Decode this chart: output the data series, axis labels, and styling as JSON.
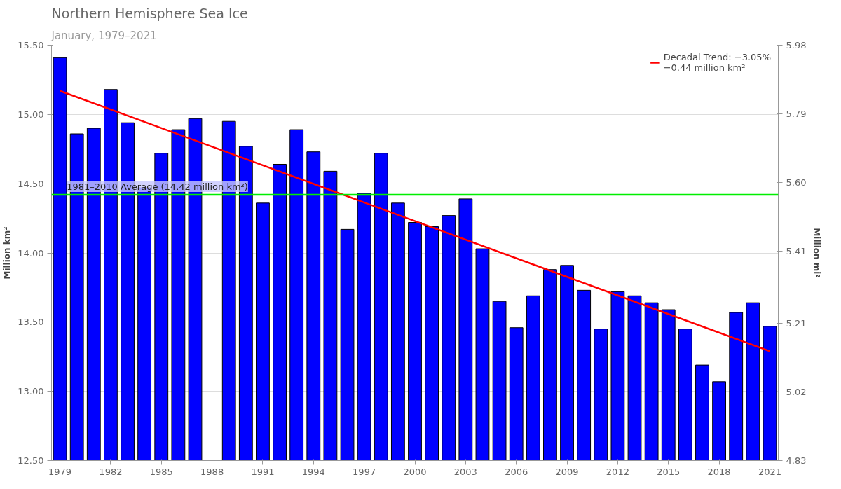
{
  "chart_data": {
    "type": "bar",
    "title": "Northern Hemisphere Sea Ice",
    "subtitle": "January, 1979–2021",
    "ylabel": "Million km²",
    "y2label": "Million mi²",
    "x": [
      1979,
      1980,
      1981,
      1982,
      1983,
      1984,
      1985,
      1986,
      1987,
      1988,
      1989,
      1990,
      1991,
      1992,
      1993,
      1994,
      1995,
      1996,
      1997,
      1998,
      1999,
      2000,
      2001,
      2002,
      2003,
      2004,
      2005,
      2006,
      2007,
      2008,
      2009,
      2010,
      2011,
      2012,
      2013,
      2014,
      2015,
      2016,
      2017,
      2018,
      2019,
      2020,
      2021
    ],
    "series": [
      {
        "color": "#0000ff",
        "values": [
          15.41,
          14.86,
          14.9,
          15.18,
          14.94,
          14.47,
          14.72,
          14.89,
          14.97,
          null,
          14.95,
          14.77,
          14.36,
          14.64,
          14.89,
          14.73,
          14.59,
          14.17,
          14.43,
          14.72,
          14.36,
          14.22,
          14.19,
          14.27,
          14.39,
          14.03,
          13.65,
          13.46,
          13.69,
          13.88,
          13.91,
          13.73,
          13.45,
          13.72,
          13.69,
          13.64,
          13.59,
          13.45,
          13.19,
          13.07,
          13.57,
          13.64,
          13.47
        ]
      },
      {
        "type": "line",
        "name": "Decadal Trend: −3.05%\n−0.44 million km²",
        "color": "#ff0000",
        "x": [
          1979,
          2021
        ],
        "values": [
          15.17,
          13.29
        ]
      }
    ],
    "xlim": [
      1978.5,
      2021.5
    ],
    "xticks": [
      1979,
      1982,
      1985,
      1988,
      1991,
      1994,
      1997,
      2000,
      2003,
      2006,
      2009,
      2012,
      2015,
      2018,
      2021
    ],
    "ylim": [
      12.5,
      15.5
    ],
    "yticks": [
      {
        "value": 12.5,
        "label": "12.50"
      },
      {
        "value": 13,
        "label": "13.00"
      },
      {
        "value": 13.5,
        "label": "13.50"
      },
      {
        "value": 14,
        "label": "14.00"
      },
      {
        "value": 14.5,
        "label": "14.50"
      },
      {
        "value": 15,
        "label": "15.00"
      },
      {
        "value": 15.5,
        "label": "15.50"
      }
    ],
    "y2lim": [
      4.83,
      5.98
    ],
    "y2ticks": [
      4.83,
      5.02,
      5.21,
      5.41,
      {
        "value": 5.6,
        "label": "5.60"
      },
      5.79,
      5.98
    ],
    "ref_lines": [
      {
        "axis": "y",
        "value": 14.42,
        "label": "1981–2010 Average (14.42 million km²)",
        "color": "#00ee00"
      }
    ],
    "grid": "y",
    "legend": "top right"
  }
}
